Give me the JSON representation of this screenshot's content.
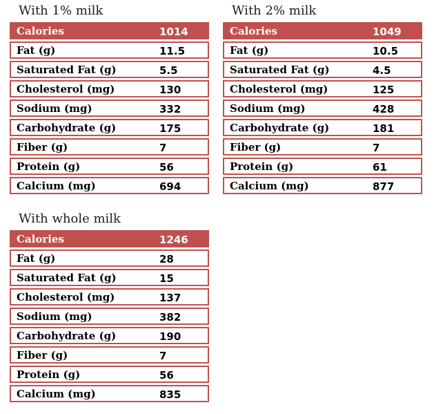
{
  "theme": {
    "accent_color": "#c0504d",
    "header_text_color": "#ffffff",
    "body_text_color": "#000000",
    "background_color": "#ffffff"
  },
  "tables": [
    {
      "title": "With 1% milk",
      "header": {
        "label": "Calories",
        "value": "1014"
      },
      "rows": [
        {
          "label": "Fat (g)",
          "value": "11.5"
        },
        {
          "label": "Saturated Fat (g)",
          "value": "5.5"
        },
        {
          "label": "Cholesterol (mg)",
          "value": "130"
        },
        {
          "label": "Sodium (mg)",
          "value": "332"
        },
        {
          "label": "Carbohydrate (g)",
          "value": "175"
        },
        {
          "label": "Fiber (g)",
          "value": "7"
        },
        {
          "label": "Protein (g)",
          "value": "56"
        },
        {
          "label": "Calcium (mg)",
          "value": "694"
        }
      ]
    },
    {
      "title": "With 2% milk",
      "header": {
        "label": "Calories",
        "value": "1049"
      },
      "rows": [
        {
          "label": "Fat (g)",
          "value": "10.5"
        },
        {
          "label": "Saturated Fat (g)",
          "value": "4.5"
        },
        {
          "label": "Cholesterol (mg)",
          "value": "125"
        },
        {
          "label": "Sodium (mg)",
          "value": "428"
        },
        {
          "label": "Carbohydrate (g)",
          "value": "181"
        },
        {
          "label": "Fiber (g)",
          "value": "7"
        },
        {
          "label": "Protein (g)",
          "value": "61"
        },
        {
          "label": "Calcium (mg)",
          "value": "877"
        }
      ]
    },
    {
      "title": "With whole milk",
      "header": {
        "label": "Calories",
        "value": "1246"
      },
      "rows": [
        {
          "label": "Fat (g)",
          "value": "28"
        },
        {
          "label": "Saturated Fat (g)",
          "value": "15"
        },
        {
          "label": "Cholesterol (mg)",
          "value": "137"
        },
        {
          "label": "Sodium (mg)",
          "value": "382"
        },
        {
          "label": "Carbohydrate (g)",
          "value": "190"
        },
        {
          "label": "Fiber (g)",
          "value": "7"
        },
        {
          "label": "Protein (g)",
          "value": "56"
        },
        {
          "label": "Calcium (mg)",
          "value": "835"
        }
      ]
    }
  ]
}
